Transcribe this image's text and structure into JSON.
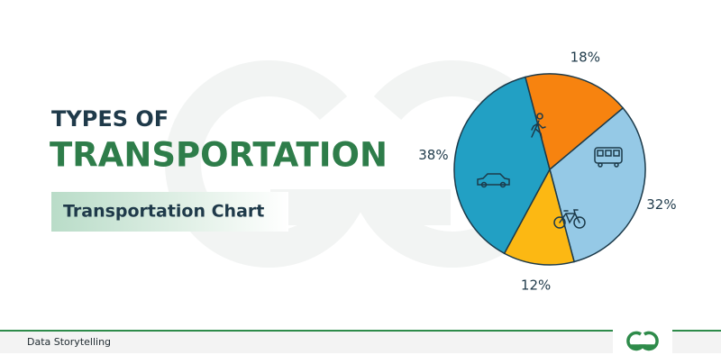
{
  "header": {
    "line1": "TYPES OF",
    "line2": "TRANSPORTATION",
    "tag": "Transportation Chart"
  },
  "footer": {
    "label": "Data Storytelling"
  },
  "chart_data": {
    "type": "pie",
    "values": [
      32,
      12,
      38,
      18
    ],
    "value_labels": [
      "32%",
      "12%",
      "38%",
      "18%"
    ],
    "colors": [
      "#95c9e6",
      "#fcb813",
      "#22a0c4",
      "#f7830f"
    ]
  }
}
